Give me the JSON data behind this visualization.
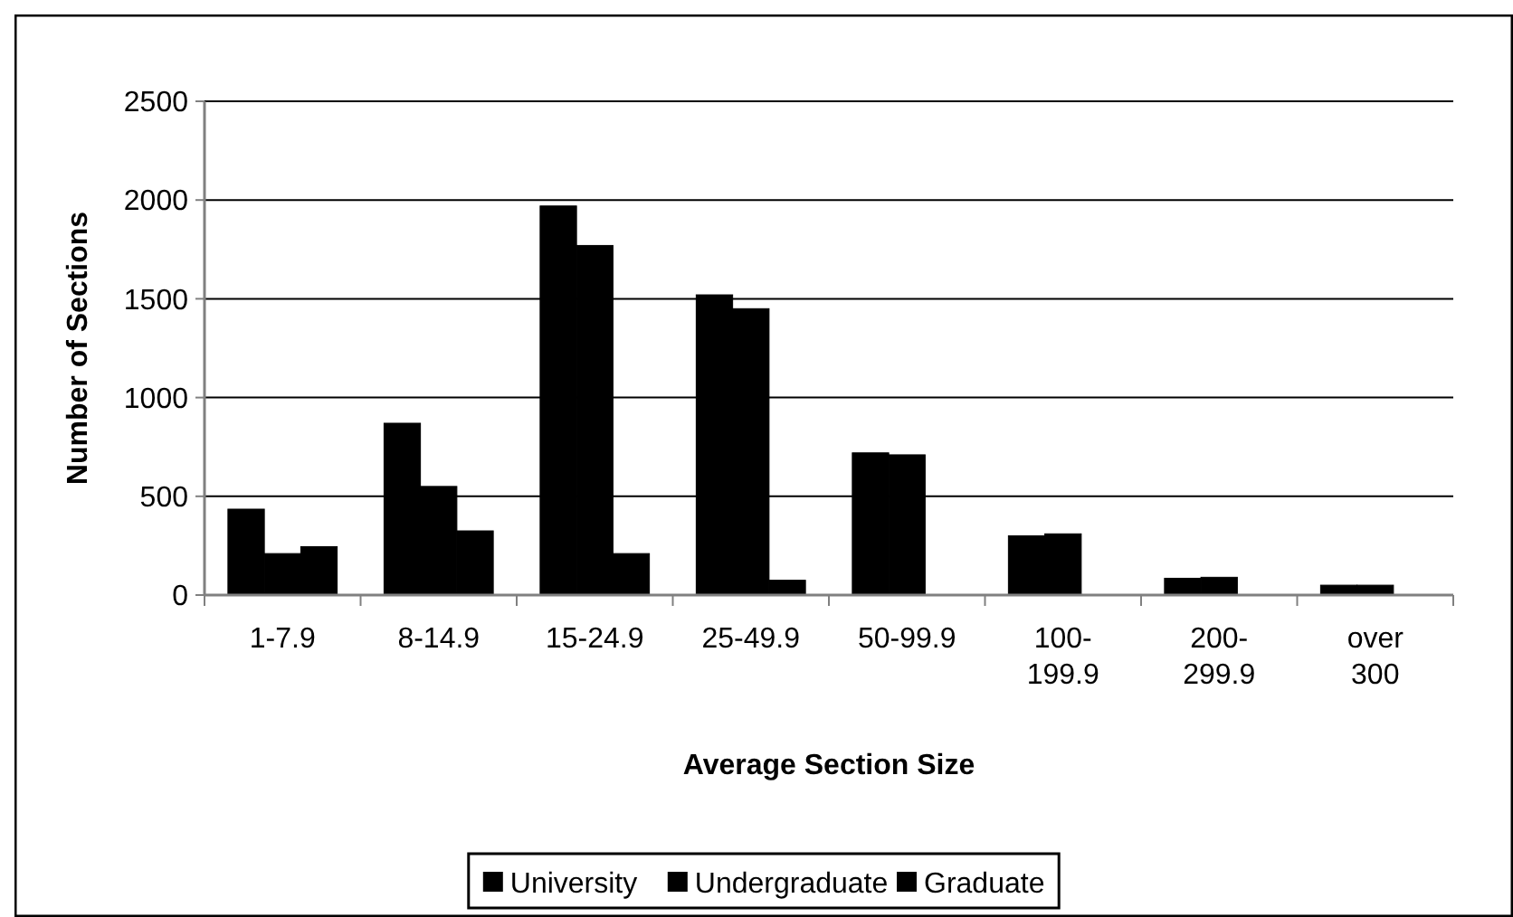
{
  "chart_data": {
    "type": "bar",
    "xlabel": "Average Section Size",
    "ylabel": "Number of Sections",
    "categories": [
      "1-7.9",
      "8-14.9",
      "15-24.9",
      "25-49.9",
      "50-99.9",
      "100-199.9",
      "200-299.9",
      "over 300"
    ],
    "series": [
      {
        "name": "University",
        "color": "#000000",
        "values": [
          435,
          870,
          1970,
          1520,
          720,
          300,
          85,
          50
        ]
      },
      {
        "name": "Undergraduate",
        "color": "#000000",
        "values": [
          210,
          550,
          1770,
          1450,
          710,
          310,
          90,
          50
        ]
      },
      {
        "name": "Graduate",
        "color": "#000000",
        "values": [
          245,
          325,
          210,
          75,
          0,
          0,
          0,
          0
        ]
      }
    ],
    "ylim": [
      0,
      2500
    ],
    "yticks": [
      0,
      500,
      1000,
      1500,
      2000,
      2500
    ],
    "grid": "y",
    "legend": "bottom"
  }
}
